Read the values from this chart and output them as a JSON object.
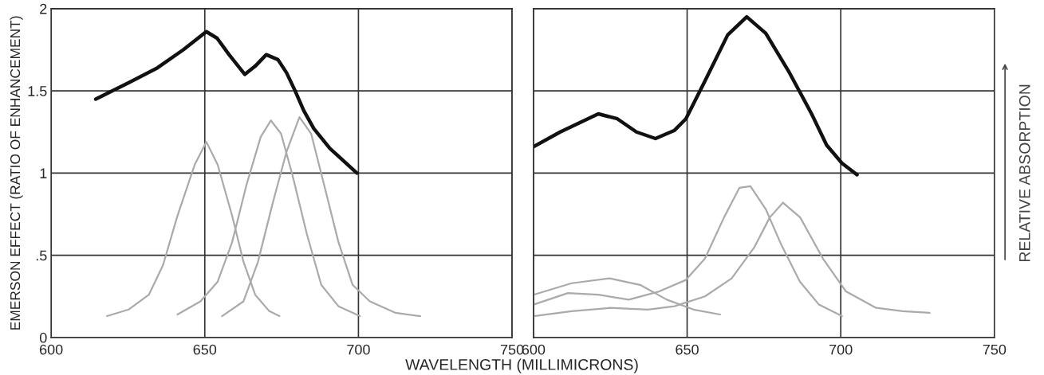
{
  "chart_data": [
    {
      "type": "line",
      "ylabel": "EMERSON EFFECT (RATIO OF ENHANCEMENT)",
      "xlabel": "WAVELENGTH (MILLIMICRONS)",
      "xlim": [
        600,
        750
      ],
      "xticks": [
        600,
        650,
        700,
        750
      ],
      "ylim": [
        0,
        2
      ],
      "yticks": [
        0,
        {
          "value": 0.5,
          "label": ".5"
        },
        1,
        1.5,
        2
      ],
      "grid": true,
      "legend": false,
      "series": [
        {
          "color": "#111111",
          "x": [
            614.5,
            625.3,
            634.6,
            643,
            650.5,
            654,
            657.9,
            663,
            666.4,
            670,
            673.8,
            676.6,
            679.4,
            682.2,
            685.5,
            690.7,
            699.5
          ],
          "values": [
            1.45,
            1.55,
            1.64,
            1.75,
            1.86,
            1.82,
            1.72,
            1.6,
            1.65,
            1.72,
            1.69,
            1.61,
            1.5,
            1.38,
            1.27,
            1.15,
            1.0
          ]
        },
        {
          "color": "#aaaaaa",
          "x": [
            618.2,
            625.2,
            631.8,
            636.4,
            641.1,
            646.7,
            650.5,
            654.2,
            658.9,
            662.6,
            666.4,
            671,
            674.3
          ],
          "values": [
            0.13,
            0.17,
            0.26,
            0.44,
            0.74,
            1.05,
            1.19,
            1.05,
            0.74,
            0.46,
            0.26,
            0.16,
            0.13
          ]
        },
        {
          "color": "#aaaaaa",
          "x": [
            641.1,
            648.6,
            654.2,
            658.9,
            663.6,
            668.2,
            671.5,
            674.8,
            678.5,
            683.2,
            687.9,
            693.5,
            700.5
          ],
          "values": [
            0.14,
            0.22,
            0.34,
            0.58,
            0.93,
            1.22,
            1.32,
            1.24,
            0.99,
            0.63,
            0.32,
            0.19,
            0.13
          ]
        },
        {
          "color": "#aaaaaa",
          "x": [
            655.6,
            662.6,
            667.3,
            672,
            676.6,
            680.8,
            684.6,
            688.8,
            693.5,
            698.1,
            703.7,
            712.1,
            720.1
          ],
          "values": [
            0.13,
            0.22,
            0.46,
            0.81,
            1.13,
            1.34,
            1.24,
            0.93,
            0.58,
            0.32,
            0.22,
            0.15,
            0.13
          ]
        }
      ]
    },
    {
      "type": "line",
      "y2label": "RELATIVE ABSORPTION",
      "xlim": [
        600,
        750
      ],
      "xticks": [
        600,
        650,
        700,
        750
      ],
      "ylim": [
        0,
        2
      ],
      "yticks": [
        {
          "value": 0,
          "label": null
        },
        {
          "value": 0.5,
          "label": null
        },
        {
          "value": 1,
          "label": null
        },
        {
          "value": 1.5,
          "label": null
        },
        {
          "value": 2,
          "label": null
        }
      ],
      "tick_labels": "x",
      "grid": true,
      "legend": false,
      "series": [
        {
          "color": "#111111",
          "x": [
            600,
            608.7,
            621.1,
            627.3,
            633.5,
            639.7,
            645.9,
            649.6,
            655.8,
            663.2,
            669.4,
            675.6,
            683,
            690.5,
            695.4,
            700.4,
            705.3
          ],
          "values": [
            1.16,
            1.25,
            1.36,
            1.33,
            1.25,
            1.21,
            1.26,
            1.33,
            1.56,
            1.84,
            1.95,
            1.85,
            1.62,
            1.36,
            1.17,
            1.06,
            0.99
          ]
        },
        {
          "color": "#aaaaaa",
          "x": [
            600,
            611.2,
            621.1,
            631,
            640.9,
            649.6,
            655.8,
            662,
            667,
            670.6,
            675.6,
            680.5,
            686.7,
            692.9,
            700.4
          ],
          "values": [
            0.2,
            0.27,
            0.26,
            0.23,
            0.28,
            0.35,
            0.48,
            0.73,
            0.91,
            0.92,
            0.78,
            0.57,
            0.34,
            0.2,
            0.13
          ]
        },
        {
          "color": "#aaaaaa",
          "x": [
            600,
            612.4,
            624.8,
            637.2,
            645.9,
            655.8,
            664.5,
            671.9,
            676.9,
            681.2,
            686.8,
            694.2,
            701.7,
            711.5,
            720.2,
            728.9
          ],
          "values": [
            0.13,
            0.16,
            0.18,
            0.17,
            0.19,
            0.25,
            0.36,
            0.55,
            0.73,
            0.82,
            0.73,
            0.48,
            0.28,
            0.18,
            0.16,
            0.15
          ]
        },
        {
          "color": "#aaaaaa",
          "x": [
            600,
            612.4,
            624.8,
            634.7,
            643.4,
            652.1,
            660.7
          ],
          "values": [
            0.26,
            0.33,
            0.36,
            0.32,
            0.23,
            0.17,
            0.14
          ]
        }
      ]
    }
  ]
}
